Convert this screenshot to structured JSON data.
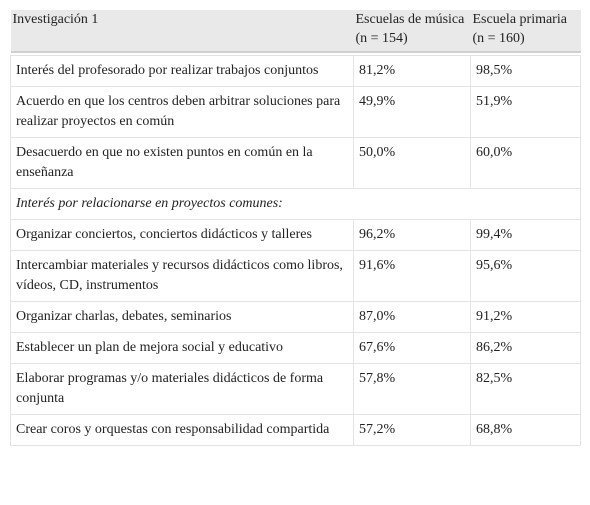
{
  "table": {
    "header": [
      "Investigación 1",
      "Escuelas de música (n = 154)",
      "Escuela primaria (n = 160)"
    ],
    "rows": [
      [
        "Interés del profesorado por realizar trabajos conjuntos",
        "81,2%",
        "98,5%"
      ],
      [
        "Acuerdo en que los centros deben arbitrar soluciones para realizar proyectos en común",
        "49,9%",
        "51,9%"
      ],
      [
        "Desacuerdo en que no existen puntos en común en la enseñanza",
        "50,0%",
        "60,0%"
      ],
      [
        "Interés por relacionarse en proyectos comunes:"
      ],
      [
        "Organizar conciertos, conciertos didácticos y talleres",
        "96,2%",
        "99,4%"
      ],
      [
        "Intercambiar materiales y recursos didácticos como libros, vídeos, CD, instrumentos",
        "91,6%",
        "95,6%"
      ],
      [
        "Organizar charlas, debates, seminarios",
        "87,0%",
        "91,2%"
      ],
      [
        "Establecer un plan de mejora social y educativo",
        "67,6%",
        "86,2%"
      ],
      [
        "Elaborar programas y/o materiales didácticos de forma conjunta",
        "57,8%",
        "82,5%"
      ],
      [
        "Crear coros y orquestas con responsabilidad compartida",
        "57,2%",
        "68,8%"
      ]
    ]
  }
}
